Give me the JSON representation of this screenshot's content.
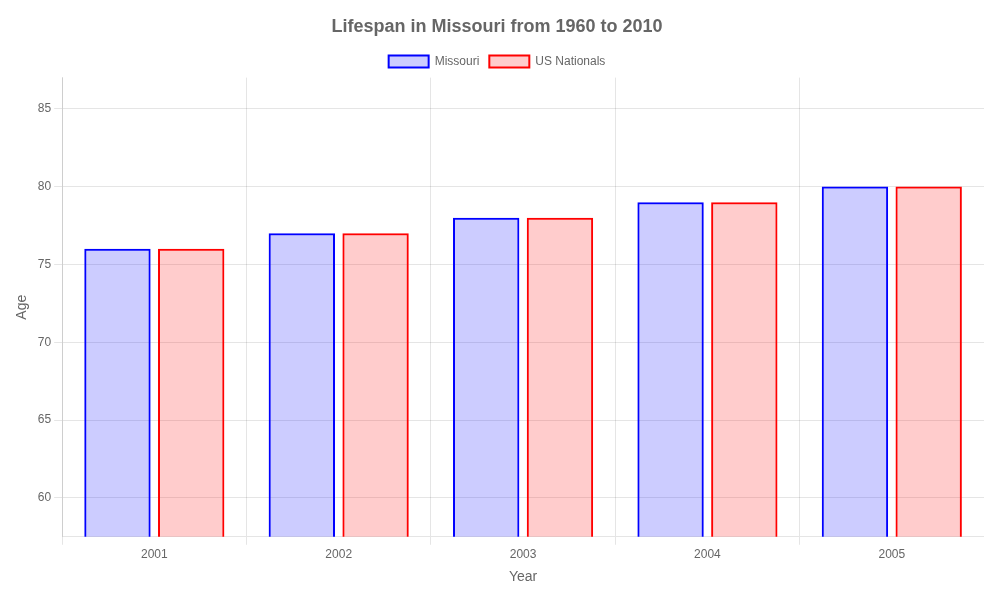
{
  "chart_data": {
    "type": "bar",
    "title": "Lifespan in Missouri from 1960 to 2010",
    "x_label": "Year",
    "y_label": "Age",
    "categories": [
      "2001",
      "2002",
      "2003",
      "2004",
      "2005"
    ],
    "series": [
      {
        "name": "Missouri",
        "color": "#0000ff",
        "values": [
          76,
          77,
          78,
          79,
          80
        ]
      },
      {
        "name": "US Nationals",
        "color": "#ff0000",
        "values": [
          76,
          77,
          78,
          79,
          80
        ]
      }
    ],
    "ylim": [
      57.5,
      87
    ],
    "yticks": [
      60,
      65,
      70,
      75,
      80,
      85
    ],
    "grid": true,
    "legend": "top"
  }
}
